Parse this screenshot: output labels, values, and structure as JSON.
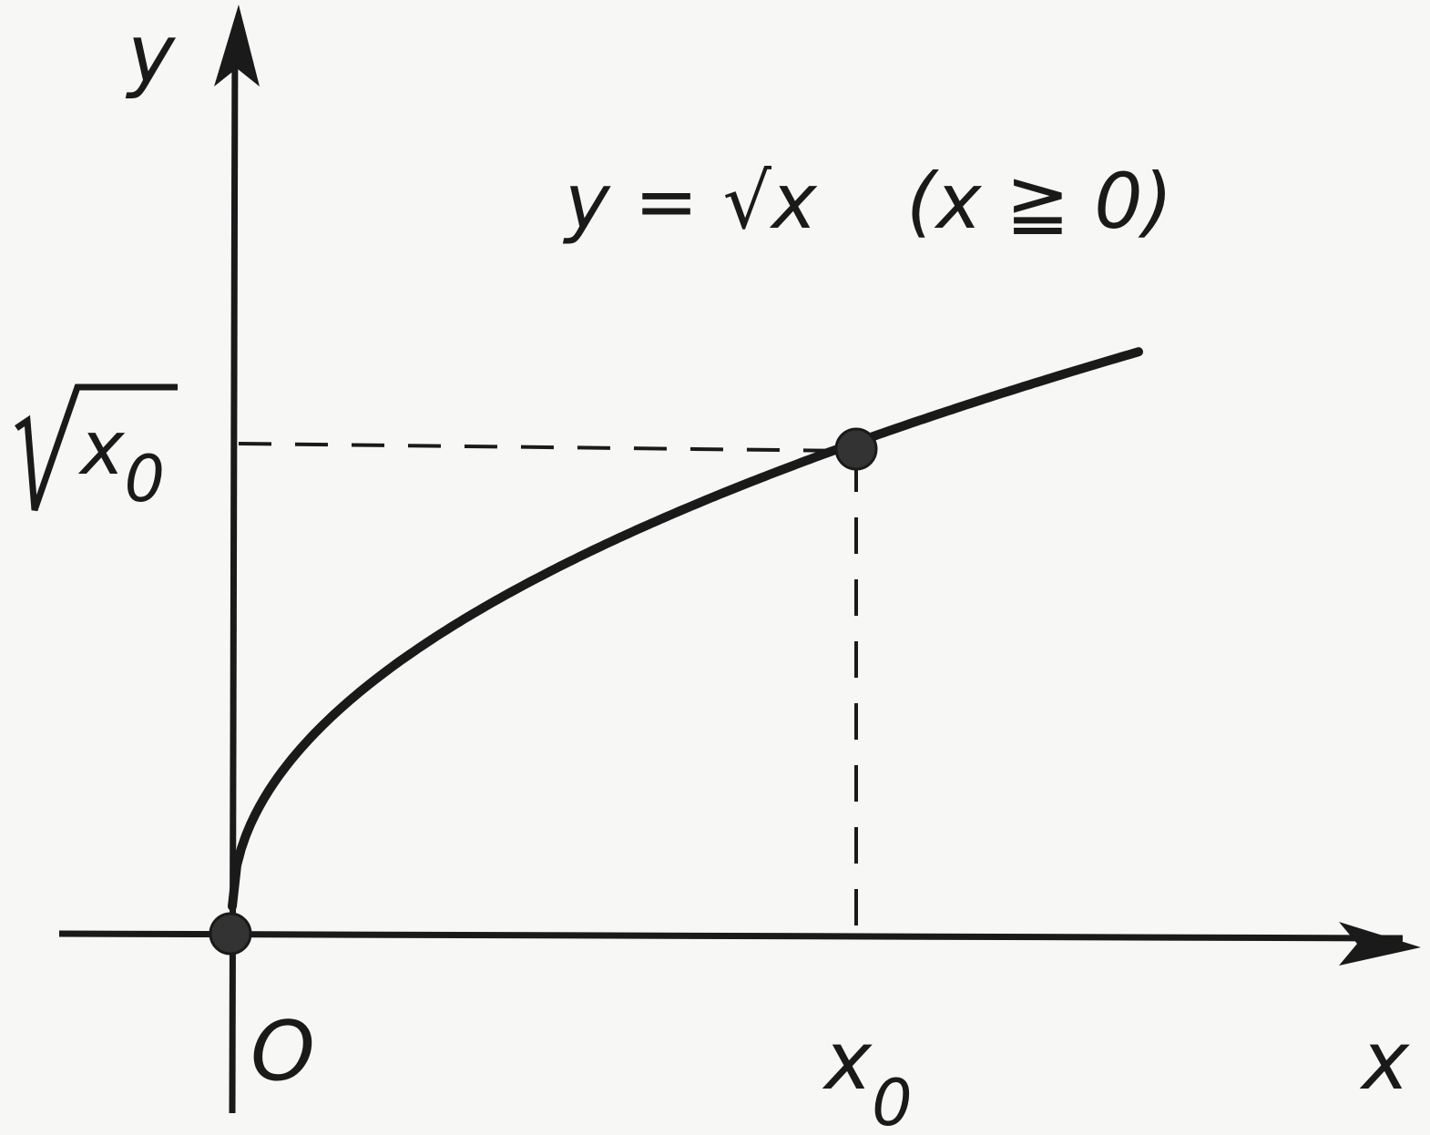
{
  "diagram": {
    "y_axis_label": "y",
    "x_axis_label": "x",
    "origin_label": "O",
    "x0_label": "x",
    "x0_subscript": "0",
    "sqrt_x0_label": "x",
    "sqrt_x0_subscript": "0",
    "curve_equation": "y = √x",
    "curve_domain": "(x ≧ 0)",
    "function": "y = sqrt(x)",
    "colors": {
      "ink": "#1a1a1a",
      "background": "#f7f7f5"
    }
  }
}
